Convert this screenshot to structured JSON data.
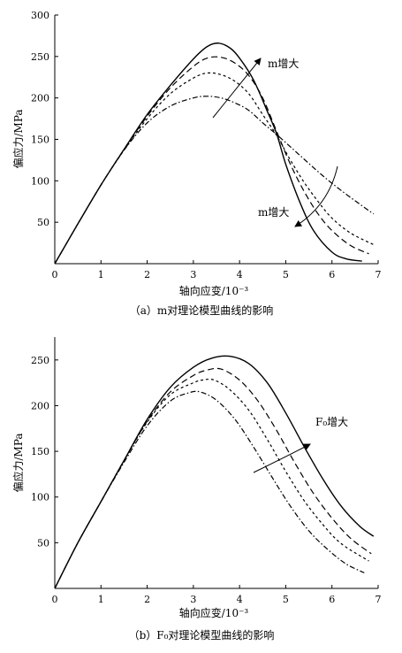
{
  "chart_data": [
    {
      "type": "line",
      "caption": "（a）m对理论模型曲线的影响",
      "xlabel": "轴向应变/10⁻³",
      "ylabel": "偏应力/MPa",
      "xlim": [
        0,
        7
      ],
      "ylim": [
        0,
        300
      ],
      "xticks": [
        "0",
        "1",
        "2",
        "3",
        "4",
        "5",
        "6",
        "7"
      ],
      "yticks": [
        "50",
        "100",
        "150",
        "200",
        "250",
        "300"
      ],
      "grid": false,
      "annotations": [
        {
          "text": "m增大",
          "target": "peak"
        },
        {
          "text": "m增大",
          "target": "tail"
        }
      ],
      "series": [
        {
          "style": "solid",
          "x": [
            0,
            0.5,
            1,
            1.5,
            2,
            2.5,
            3,
            3.3,
            3.55,
            3.8,
            4,
            4.3,
            4.6,
            4.8,
            5,
            5.3,
            5.6,
            6,
            6.3,
            6.65
          ],
          "y": [
            0,
            48,
            95,
            138,
            180,
            215,
            247,
            262,
            266,
            260,
            248,
            222,
            184,
            157,
            120,
            75,
            40,
            14,
            6,
            3
          ]
        },
        {
          "style": "dashed",
          "x": [
            0,
            0.5,
            1,
            1.5,
            2,
            2.5,
            3,
            3.3,
            3.6,
            3.9,
            4.2,
            4.5,
            4.8,
            5.1,
            5.4,
            5.7,
            6,
            6.4,
            6.8
          ],
          "y": [
            0,
            48,
            95,
            138,
            178,
            212,
            238,
            248,
            249,
            242,
            227,
            200,
            160,
            120,
            87,
            60,
            40,
            22,
            12
          ]
        },
        {
          "style": "short-dashed",
          "x": [
            0,
            0.5,
            1,
            1.5,
            2,
            2.5,
            3,
            3.3,
            3.6,
            3.9,
            4.2,
            4.5,
            4.8,
            5.1,
            5.4,
            5.7,
            6,
            6.4,
            6.9
          ],
          "y": [
            0,
            48,
            95,
            137,
            175,
            205,
            224,
            230,
            228,
            220,
            205,
            180,
            155,
            125,
            98,
            75,
            55,
            37,
            23
          ]
        },
        {
          "style": "dash-dot",
          "x": [
            0,
            0.5,
            1,
            1.5,
            2,
            2.5,
            3,
            3.3,
            3.6,
            3.9,
            4.2,
            4.5,
            4.8,
            5.1,
            5.4,
            5.7,
            6,
            6.4,
            6.9
          ],
          "y": [
            0,
            48,
            95,
            137,
            170,
            190,
            200,
            202,
            200,
            194,
            185,
            170,
            156,
            141,
            126,
            111,
            97,
            80,
            60
          ]
        }
      ]
    },
    {
      "type": "line",
      "caption": "（b）F₀对理论模型曲线的影响",
      "xlabel": "轴向应变/10⁻³",
      "ylabel": "偏应力/MPa",
      "xlim": [
        0,
        7
      ],
      "ylim": [
        0,
        275
      ],
      "xticks": [
        "0",
        "1",
        "2",
        "3",
        "4",
        "5",
        "6",
        "7"
      ],
      "yticks": [
        "50",
        "100",
        "150",
        "200",
        "250"
      ],
      "grid": false,
      "annotations": [
        {
          "text": "F₀增大",
          "target": "descending"
        }
      ],
      "series": [
        {
          "style": "solid",
          "x": [
            0,
            0.5,
            1,
            1.5,
            2,
            2.5,
            3,
            3.4,
            3.8,
            4.2,
            4.6,
            5,
            5.4,
            5.8,
            6.2,
            6.6,
            6.9
          ],
          "y": [
            0,
            50,
            95,
            140,
            185,
            220,
            242,
            252,
            254,
            246,
            225,
            192,
            155,
            120,
            90,
            68,
            57
          ]
        },
        {
          "style": "dashed",
          "x": [
            0,
            0.5,
            1,
            1.5,
            2,
            2.5,
            3,
            3.3,
            3.6,
            4,
            4.4,
            4.8,
            5.2,
            5.6,
            6,
            6.4,
            6.85
          ],
          "y": [
            0,
            50,
            95,
            140,
            183,
            215,
            233,
            239,
            240,
            228,
            205,
            173,
            137,
            104,
            77,
            55,
            38
          ]
        },
        {
          "style": "short-dashed",
          "x": [
            0,
            0.5,
            1,
            1.5,
            2,
            2.5,
            3,
            3.2,
            3.45,
            3.8,
            4.2,
            4.6,
            5,
            5.4,
            5.8,
            6.2,
            6.8
          ],
          "y": [
            0,
            50,
            95,
            140,
            182,
            212,
            225,
            228,
            228,
            217,
            195,
            163,
            128,
            96,
            70,
            49,
            30
          ]
        },
        {
          "style": "dash-dot",
          "x": [
            0,
            0.5,
            1,
            1.5,
            2,
            2.5,
            2.9,
            3.15,
            3.5,
            3.9,
            4.3,
            4.7,
            5.1,
            5.5,
            5.9,
            6.3,
            6.7
          ],
          "y": [
            0,
            50,
            95,
            138,
            178,
            205,
            214,
            215,
            206,
            185,
            155,
            122,
            90,
            63,
            43,
            27,
            17
          ]
        }
      ]
    }
  ]
}
